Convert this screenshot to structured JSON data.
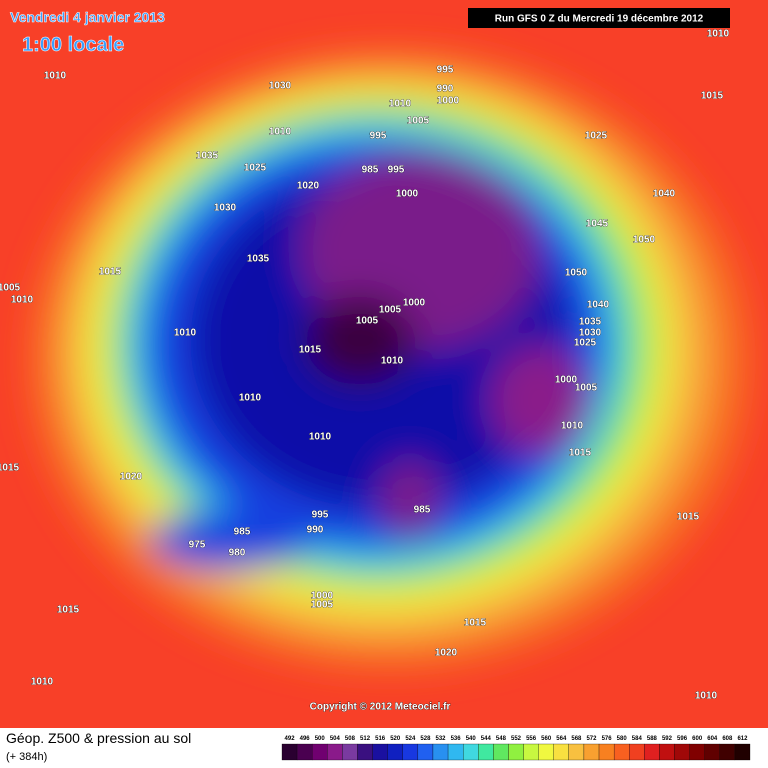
{
  "header": {
    "valid_date": "Vendredi 4 janvier 2013",
    "local_time": "1:00 locale",
    "run": "Run GFS 0 Z du Mercredi 19 décembre 2012"
  },
  "map": {
    "isobar_labels": [
      "1010",
      "1015",
      "1010",
      "1030",
      "995",
      "990",
      "1000",
      "1010",
      "1005",
      "1010",
      "995",
      "1025",
      "1035",
      "1025",
      "985",
      "995",
      "1020",
      "1000",
      "1040",
      "1030",
      "1045",
      "1050",
      "1035",
      "1015",
      "1050",
      "1005",
      "1010",
      "1040",
      "1005",
      "1000",
      "1005",
      "1035",
      "1010",
      "1030",
      "1025",
      "1015",
      "1010",
      "1000",
      "1005",
      "1010",
      "1010",
      "1010",
      "1015",
      "1015",
      "1020",
      "995",
      "985",
      "1015",
      "985",
      "990",
      "975",
      "980",
      "1000",
      "1005",
      "1015",
      "1015",
      "1020",
      "1010",
      "1010"
    ],
    "copyright": "Copyright © 2012 Meteociel.fr"
  },
  "footer": {
    "title": "Géop. Z500 & pression au sol",
    "lead_time": "(+ 384h)",
    "legend": {
      "ticks": [
        492,
        496,
        500,
        504,
        508,
        512,
        516,
        520,
        524,
        528,
        532,
        536,
        540,
        544,
        548,
        552,
        556,
        560,
        564,
        568,
        572,
        576,
        580,
        584,
        588,
        592,
        596,
        600,
        604,
        608,
        612
      ],
      "colors": [
        "#2a0030",
        "#4a0050",
        "#700070",
        "#8a1a8a",
        "#7a3aa0",
        "#3a1080",
        "#1a10a0",
        "#1020c0",
        "#1838e0",
        "#2060f0",
        "#2890f0",
        "#30b8f0",
        "#40d8e0",
        "#40e8a0",
        "#60e860",
        "#90f040",
        "#c8f840",
        "#f0f840",
        "#f8e040",
        "#f8c040",
        "#f8a030",
        "#f88020",
        "#f86020",
        "#f04020",
        "#e02020",
        "#c01010",
        "#a00808",
        "#800000",
        "#600000",
        "#400000",
        "#200000"
      ]
    }
  }
}
